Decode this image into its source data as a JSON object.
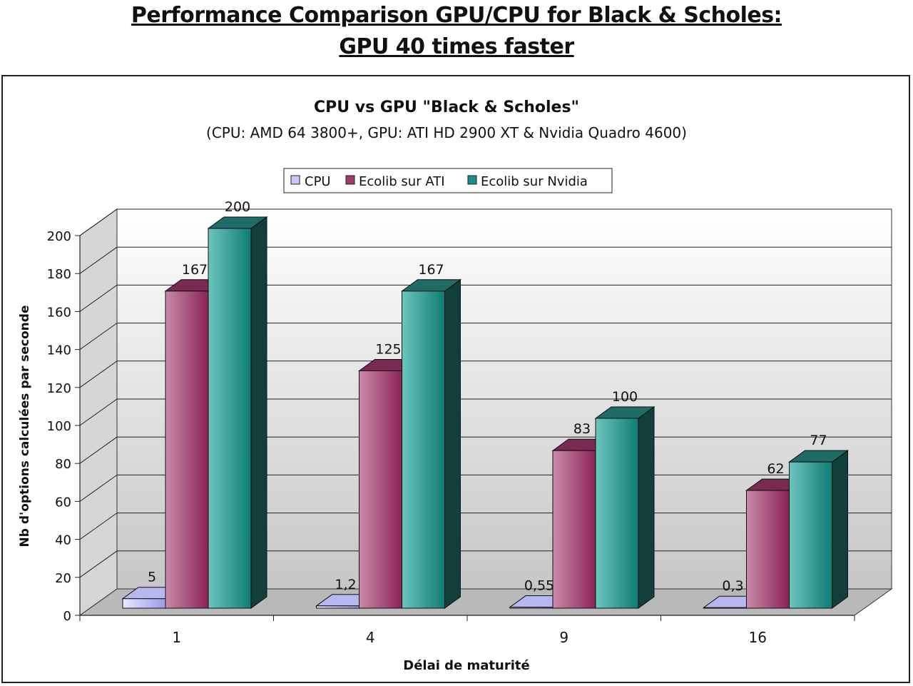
{
  "page": {
    "title_line1": "Performance Comparison GPU/CPU for Black & Scholes:",
    "title_line2": "GPU 40 times faster"
  },
  "chart_data": {
    "type": "bar",
    "title": "CPU vs GPU \"Black & Scholes\"",
    "subtitle": "(CPU: AMD 64 3800+, GPU: ATI HD 2900 XT & Nvidia Quadro 4600)",
    "xlabel": "Délai de maturité",
    "ylabel": "Nb d'options calculées par seconde",
    "categories": [
      "1",
      "4",
      "9",
      "16"
    ],
    "ylim": [
      0,
      200
    ],
    "yticks": [
      "0",
      "20",
      "40",
      "60",
      "80",
      "100",
      "120",
      "140",
      "160",
      "180",
      "200"
    ],
    "grid": true,
    "legend_position": "top-center",
    "series": [
      {
        "name": "CPU",
        "values": [
          5,
          1.2,
          0.55,
          0.3
        ],
        "labels": [
          "5",
          "1,2",
          "0,55",
          "0,3"
        ],
        "color": "#c8c8ff"
      },
      {
        "name": "Ecolib sur ATI",
        "values": [
          167,
          125,
          83,
          62
        ],
        "labels": [
          "167",
          "125",
          "83",
          "62"
        ],
        "color": "#a33a6c"
      },
      {
        "name": "Ecolib sur Nvidia",
        "values": [
          200,
          167,
          100,
          77
        ],
        "labels": [
          "200",
          "167",
          "100",
          "77"
        ],
        "color": "#178f88"
      }
    ]
  }
}
